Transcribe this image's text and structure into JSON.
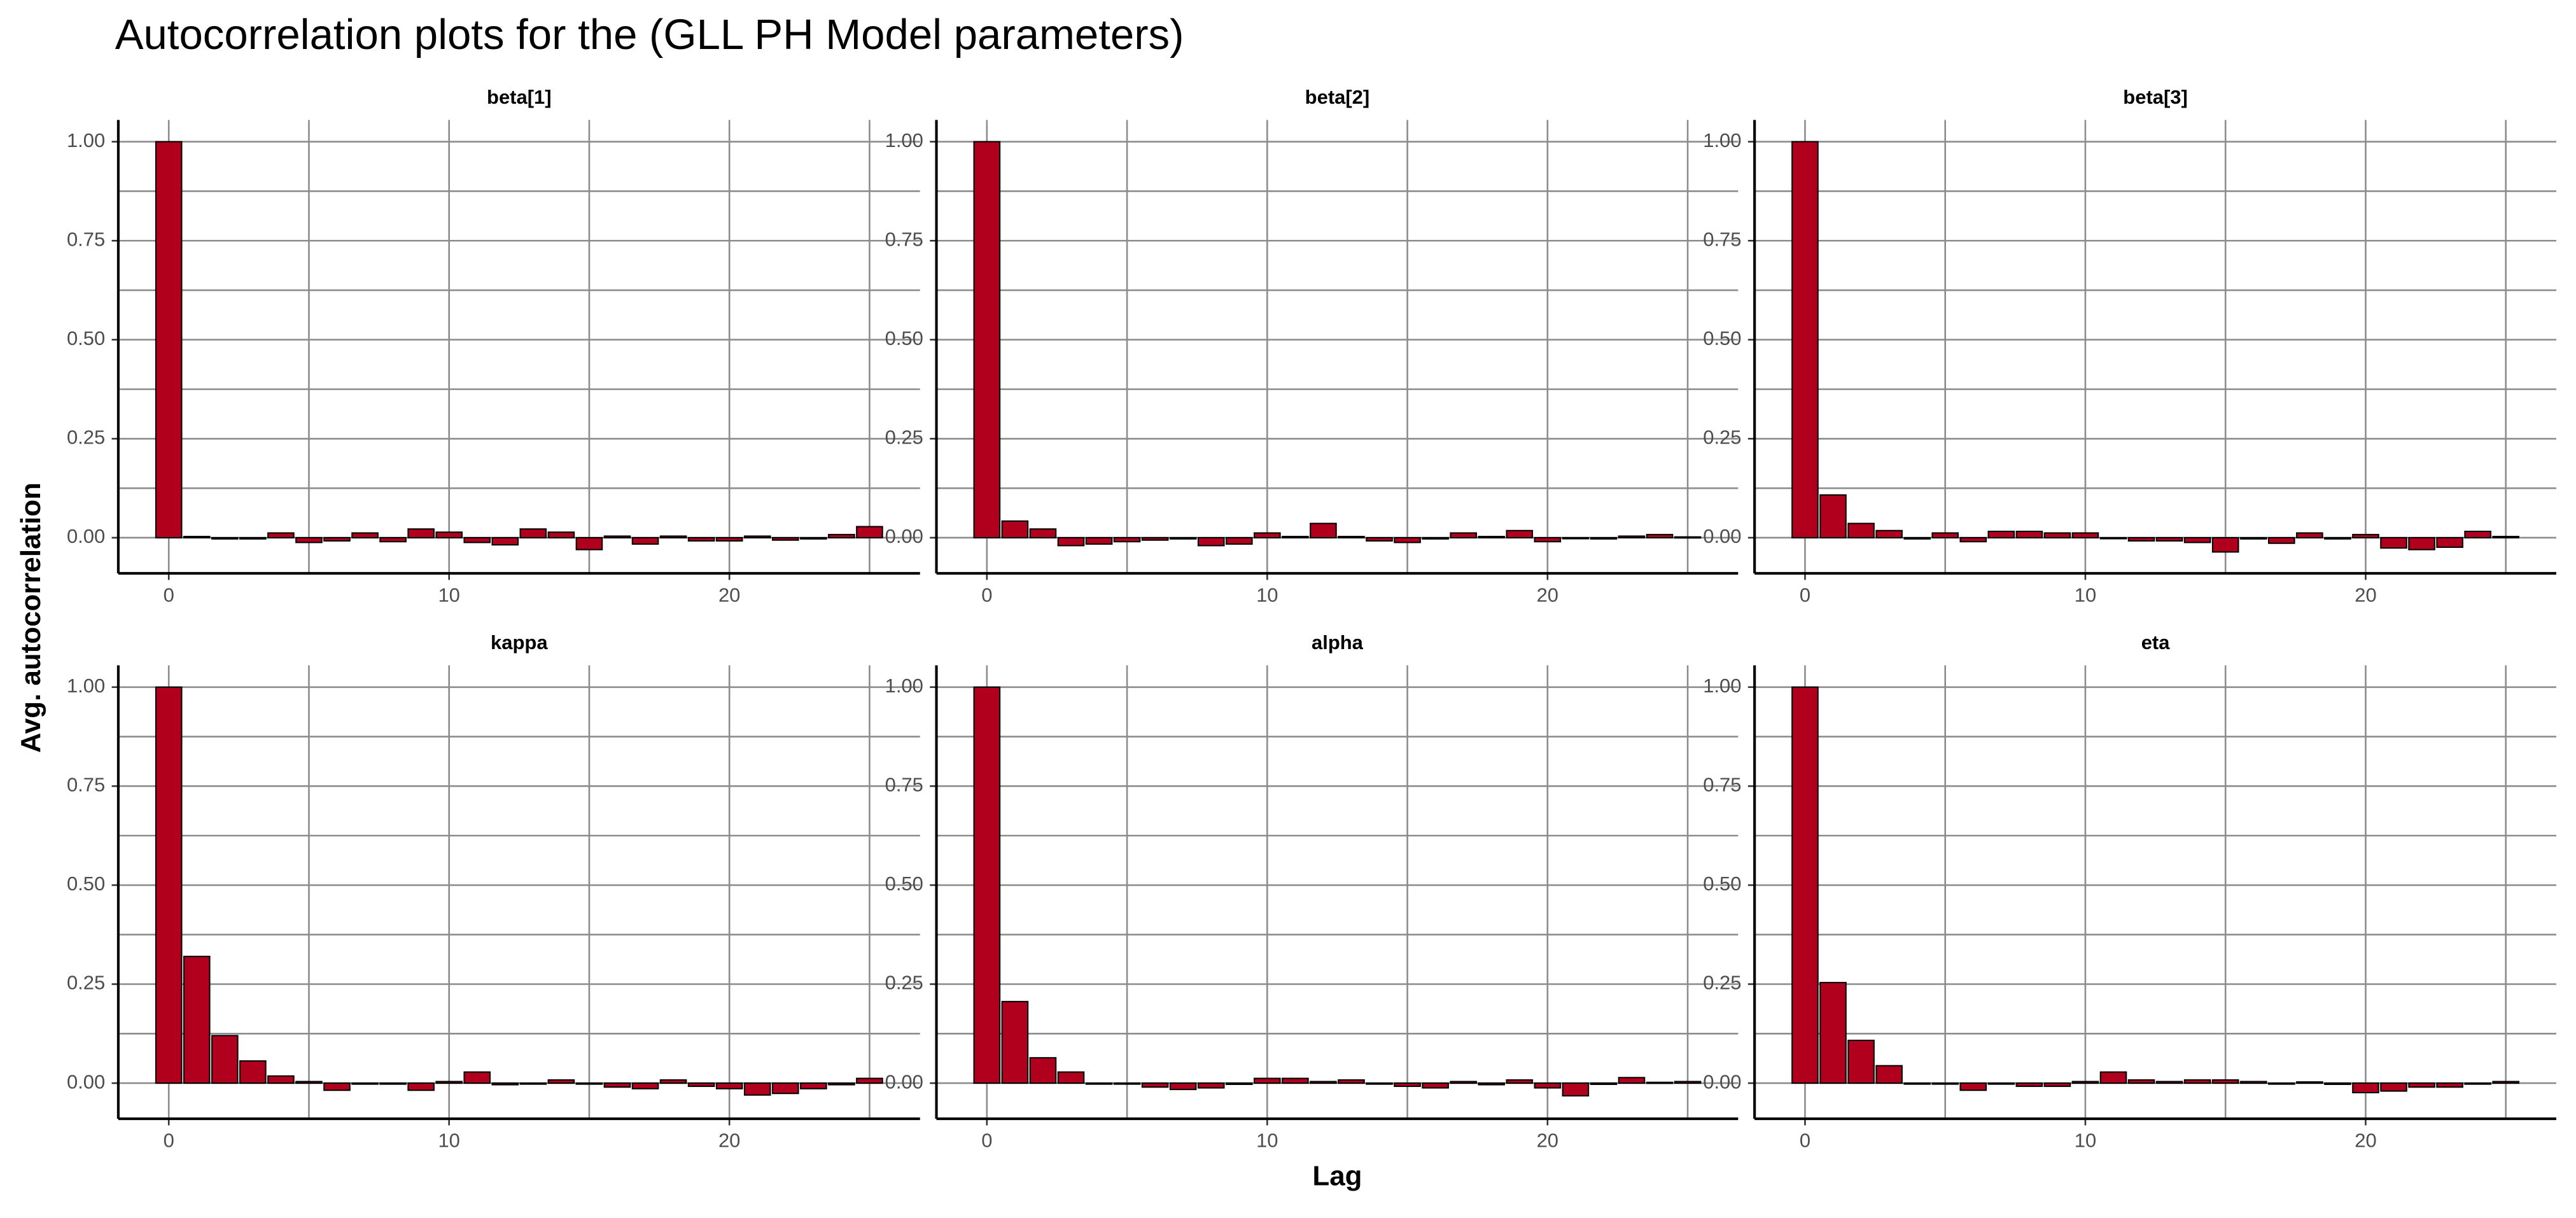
{
  "chart_data": {
    "type": "bar",
    "title": "Autocorrelation plots for the (GLL PH Model parameters)",
    "x_label": "Lag",
    "y_label": "Avg. autocorrelation",
    "color": "#b0001e",
    "x": [
      0,
      1,
      2,
      3,
      4,
      5,
      6,
      7,
      8,
      9,
      10,
      11,
      12,
      13,
      14,
      15,
      16,
      17,
      18,
      19,
      20,
      21,
      22,
      23,
      24,
      25
    ],
    "xlim": [
      -1.8,
      26.8
    ],
    "xticks": [
      0,
      10,
      20
    ],
    "ylim": [
      -0.09,
      1.055
    ],
    "yticks": [
      {
        "value": 0,
        "label": "0.00"
      },
      {
        "value": 0.25,
        "label": "0.25"
      },
      {
        "value": 0.5,
        "label": "0.50"
      },
      {
        "value": 0.75,
        "label": "0.75"
      },
      {
        "value": 1,
        "label": "1.00"
      }
    ],
    "grid": true,
    "panels": [
      {
        "name": "beta[1]",
        "values": [
          1.0,
          0.003,
          -0.003,
          -0.003,
          0.012,
          -0.012,
          -0.008,
          0.012,
          -0.01,
          0.022,
          0.014,
          -0.012,
          -0.018,
          0.022,
          0.014,
          -0.03,
          0.004,
          -0.016,
          0.004,
          -0.008,
          -0.008,
          0.004,
          -0.006,
          -0.003,
          0.008,
          0.028
        ]
      },
      {
        "name": "beta[2]",
        "values": [
          1.0,
          0.042,
          0.022,
          -0.02,
          -0.016,
          -0.01,
          -0.006,
          -0.003,
          -0.02,
          -0.016,
          0.012,
          0.003,
          0.036,
          0.003,
          -0.008,
          -0.012,
          -0.003,
          0.012,
          0.003,
          0.018,
          -0.01,
          0.0,
          -0.003,
          0.004,
          0.008,
          0.002
        ]
      },
      {
        "name": "beta[3]",
        "values": [
          1.0,
          0.108,
          0.036,
          0.018,
          -0.003,
          0.012,
          -0.01,
          0.016,
          0.016,
          0.012,
          0.012,
          0.0,
          -0.008,
          -0.008,
          -0.012,
          -0.036,
          -0.003,
          -0.014,
          0.012,
          -0.003,
          0.008,
          -0.026,
          -0.03,
          -0.024,
          0.016,
          0.003
        ]
      },
      {
        "name": "kappa",
        "values": [
          1.0,
          0.32,
          0.12,
          0.056,
          0.018,
          0.004,
          -0.018,
          0.0,
          0.0,
          -0.018,
          0.004,
          0.028,
          -0.004,
          0.0,
          0.008,
          0.0,
          -0.01,
          -0.014,
          0.008,
          -0.008,
          -0.014,
          -0.03,
          -0.026,
          -0.014,
          -0.004,
          0.012
        ]
      },
      {
        "name": "alpha",
        "values": [
          1.0,
          0.206,
          0.064,
          0.028,
          0.0,
          0.0,
          -0.01,
          -0.016,
          -0.012,
          -0.003,
          0.012,
          0.012,
          0.004,
          0.008,
          0.0,
          -0.008,
          -0.012,
          0.004,
          -0.004,
          0.008,
          -0.012,
          -0.032,
          -0.003,
          0.014,
          0.002,
          0.004
        ]
      },
      {
        "name": "eta",
        "values": [
          1.0,
          0.254,
          0.108,
          0.044,
          0.0,
          0.0,
          -0.018,
          0.0,
          -0.008,
          -0.008,
          0.004,
          0.028,
          0.008,
          0.004,
          0.008,
          0.008,
          0.004,
          0.0,
          0.003,
          -0.003,
          -0.024,
          -0.02,
          -0.01,
          -0.01,
          0.0,
          0.004
        ]
      }
    ]
  }
}
